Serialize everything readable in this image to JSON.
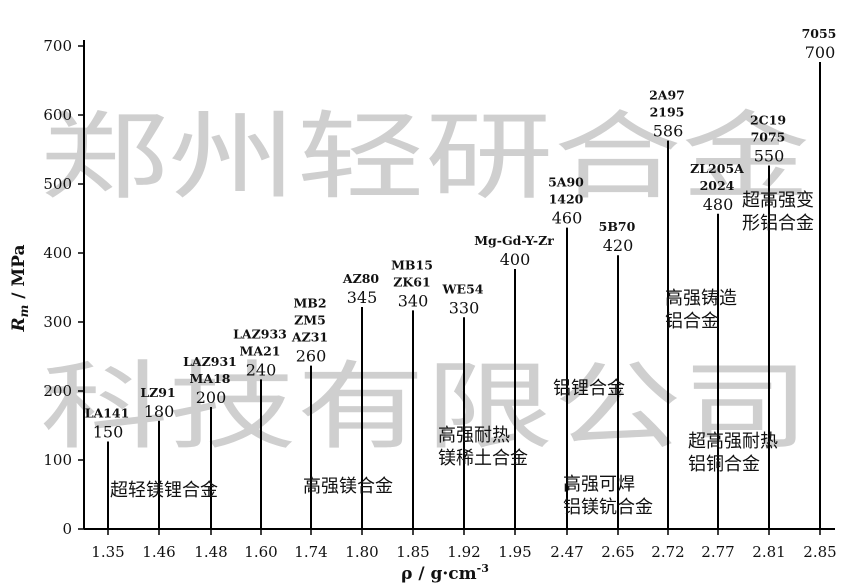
{
  "chart_data": {
    "type": "bar",
    "ylabel": "Rm / MPa",
    "ylabel_sub": "m",
    "xlabel": "ρ / g·cm⁻³",
    "xlabel_sup": "-3",
    "ylim": [
      0,
      700
    ],
    "yticks": [
      0,
      100,
      200,
      300,
      400,
      500,
      600,
      700
    ],
    "categories": [
      "1.35",
      "1.46",
      "1.48",
      "1.60",
      "1.74",
      "1.80",
      "1.85",
      "1.92",
      "1.95",
      "2.47",
      "2.65",
      "2.72",
      "2.77",
      "2.81",
      "2.85"
    ],
    "values": [
      150,
      180,
      200,
      240,
      260,
      345,
      340,
      330,
      400,
      460,
      420,
      586,
      480,
      550,
      700
    ],
    "alloy_labels": [
      [
        "LA141"
      ],
      [
        "LZ91"
      ],
      [
        "LAZ931",
        "MA18"
      ],
      [
        "LAZ933",
        "MA21"
      ],
      [
        "MB2",
        "ZM5",
        "AZ31"
      ],
      [
        "AZ80"
      ],
      [
        "MB15",
        "ZK61"
      ],
      [
        "WE54"
      ],
      [
        "Mg-Gd-Y-Zr"
      ],
      [
        "5A90",
        "1420"
      ],
      [
        "5B70"
      ],
      [
        "2A97",
        "2195"
      ],
      [
        "ZL205A",
        "2024"
      ],
      [
        "2C19",
        "7075"
      ],
      [
        "7055"
      ]
    ],
    "group_labels": [
      [
        "超轻镁锂合金"
      ],
      [
        "高强镁合金"
      ],
      [
        "高强耐热",
        "镁稀土合金"
      ],
      [
        "铝锂合金"
      ],
      [
        "高强可焊",
        "铝镁钪合金"
      ],
      [
        "高强铸造",
        "铝合金"
      ],
      [
        "超高强耐热",
        "铝铜合金"
      ],
      [
        "超高强变",
        "形铝合金"
      ]
    ],
    "watermark": [
      "郑州轻研合金",
      "科技有限公司"
    ]
  }
}
